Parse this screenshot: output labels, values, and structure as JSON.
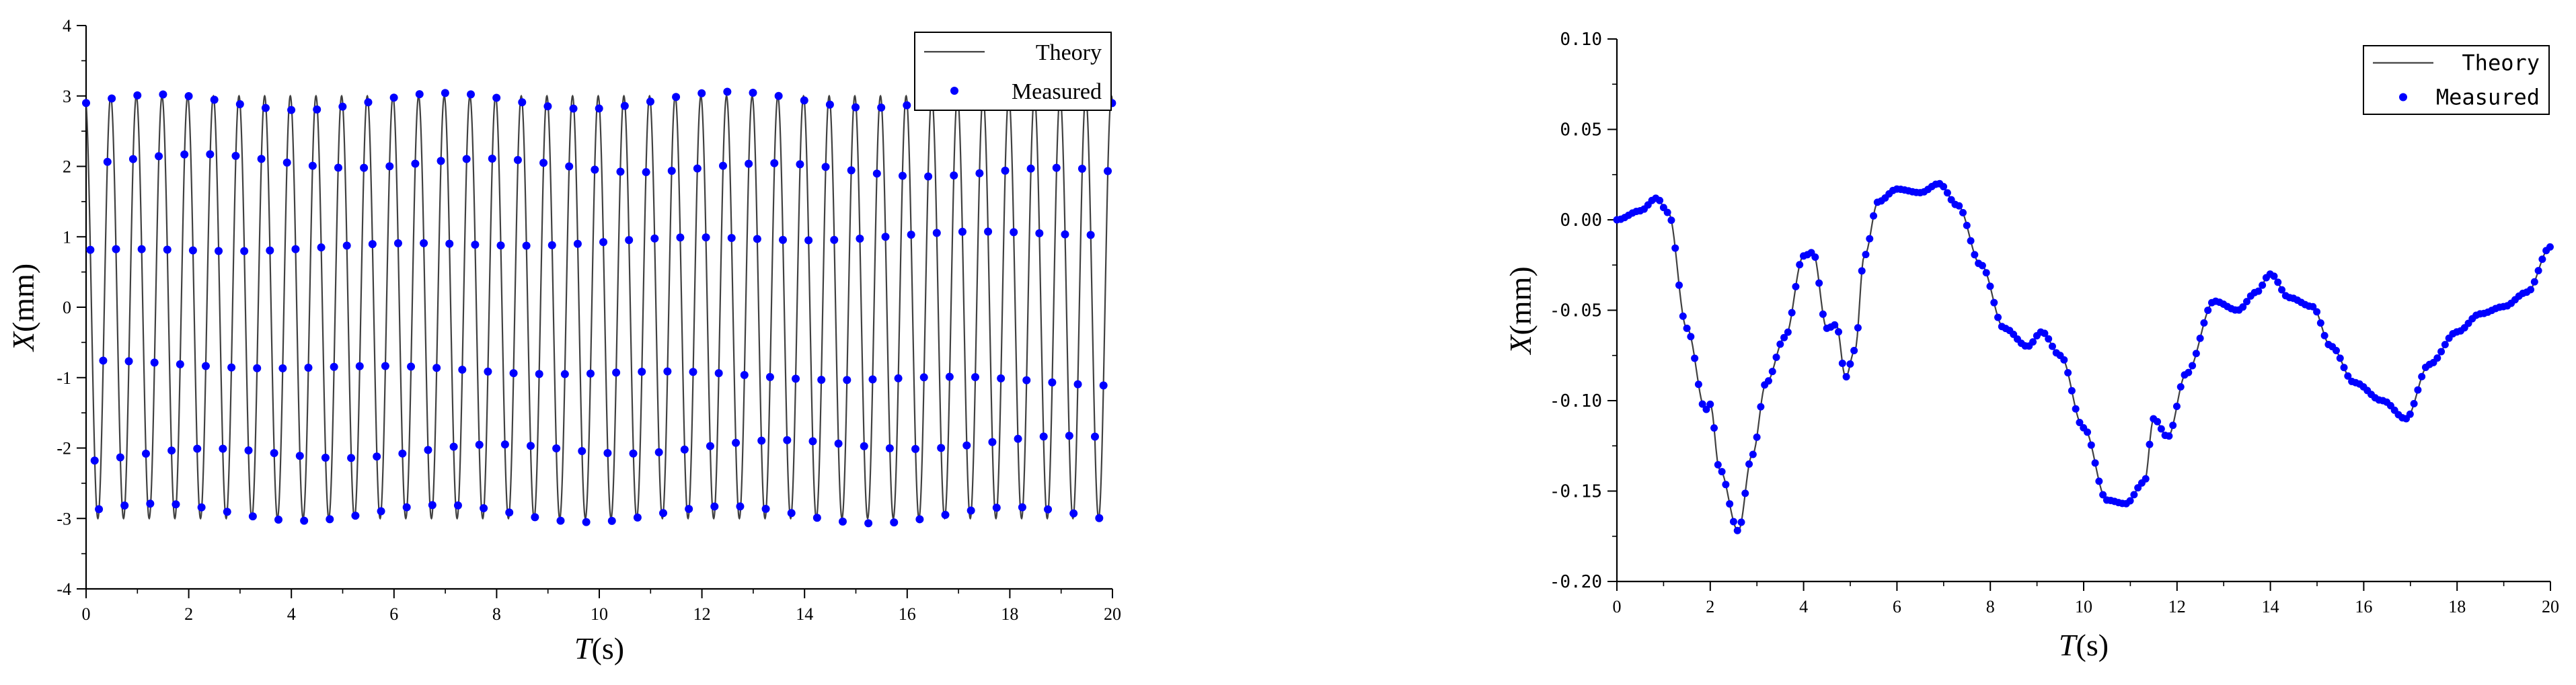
{
  "chart_data": [
    {
      "type": "line",
      "xlabel_italic": "T",
      "xlabel_unit": "(s)",
      "ylabel_italic": "X",
      "ylabel_unit": "(mm)",
      "xlim": [
        0,
        20
      ],
      "ylim": [
        -4,
        4
      ],
      "xticks": [
        "0",
        "2",
        "4",
        "6",
        "8",
        "10",
        "12",
        "14",
        "16",
        "18",
        "20"
      ],
      "yticks": [
        "-4",
        "-3",
        "-2",
        "-1",
        "0",
        "1",
        "2",
        "3",
        "4"
      ],
      "legend": {
        "placement": "top-right",
        "entries": [
          "Theory",
          "Measured"
        ]
      },
      "grid": false,
      "series": [
        {
          "name": "Theory",
          "style": "line",
          "color": "#404040",
          "model": {
            "amplitude": 3.0,
            "frequency_hz": 2.0,
            "phase_at_t0_y": 2.9
          }
        },
        {
          "name": "Measured",
          "style": "markers",
          "color": "#0000ff",
          "sample_interval_s": 0.0833,
          "model": {
            "amplitude": 3.0,
            "frequency_hz": 2.0,
            "phase_at_t0_y": 2.9
          }
        }
      ]
    },
    {
      "type": "line",
      "xlabel_italic": "T",
      "xlabel_unit": "(s)",
      "ylabel_italic": "X",
      "ylabel_unit": "(mm)",
      "xlim": [
        0,
        20
      ],
      "ylim": [
        -0.2,
        0.1
      ],
      "xticks": [
        "0",
        "2",
        "4",
        "6",
        "8",
        "10",
        "12",
        "14",
        "16",
        "18",
        "20"
      ],
      "yticks": [
        "-0.20",
        "-0.15",
        "-0.10",
        "-0.05",
        "0.00",
        "0.05",
        "0.10"
      ],
      "legend": {
        "placement": "top-right",
        "entries": [
          "Theory",
          "Measured"
        ]
      },
      "grid": false,
      "series": [
        {
          "name": "Theory",
          "style": "line",
          "color": "#404040",
          "x": [
            0,
            0.5,
            0.85,
            1.1,
            1.5,
            1.9,
            2.0,
            2.2,
            2.6,
            2.9,
            3.2,
            3.6,
            4.0,
            4.2,
            4.5,
            4.7,
            4.9,
            5.1,
            5.3,
            5.6,
            6.0,
            6.5,
            6.9,
            7.3,
            7.8,
            8.3,
            8.8,
            9.1,
            9.5,
            10.0,
            10.5,
            10.9,
            11.3,
            11.5,
            11.8,
            12.2,
            12.8,
            13.3,
            13.7,
            14.0,
            14.4,
            14.9,
            15.3,
            15.8,
            16.4,
            16.9,
            17.4,
            18.0,
            18.5,
            19.0,
            19.5,
            20.0
          ],
          "y": [
            0.0,
            0.005,
            0.012,
            0.004,
            -0.06,
            -0.105,
            -0.102,
            -0.138,
            -0.172,
            -0.13,
            -0.09,
            -0.065,
            -0.02,
            -0.018,
            -0.06,
            -0.058,
            -0.087,
            -0.072,
            -0.02,
            0.01,
            0.017,
            0.015,
            0.02,
            0.008,
            -0.025,
            -0.06,
            -0.07,
            -0.062,
            -0.075,
            -0.115,
            -0.155,
            -0.157,
            -0.145,
            -0.11,
            -0.12,
            -0.085,
            -0.045,
            -0.05,
            -0.04,
            -0.03,
            -0.043,
            -0.048,
            -0.07,
            -0.09,
            -0.1,
            -0.11,
            -0.08,
            -0.062,
            -0.052,
            -0.048,
            -0.04,
            -0.015
          ]
        },
        {
          "name": "Measured",
          "style": "markers",
          "color": "#0000ff",
          "sample_interval_s": 0.0833,
          "follows": "Theory"
        }
      ]
    }
  ]
}
